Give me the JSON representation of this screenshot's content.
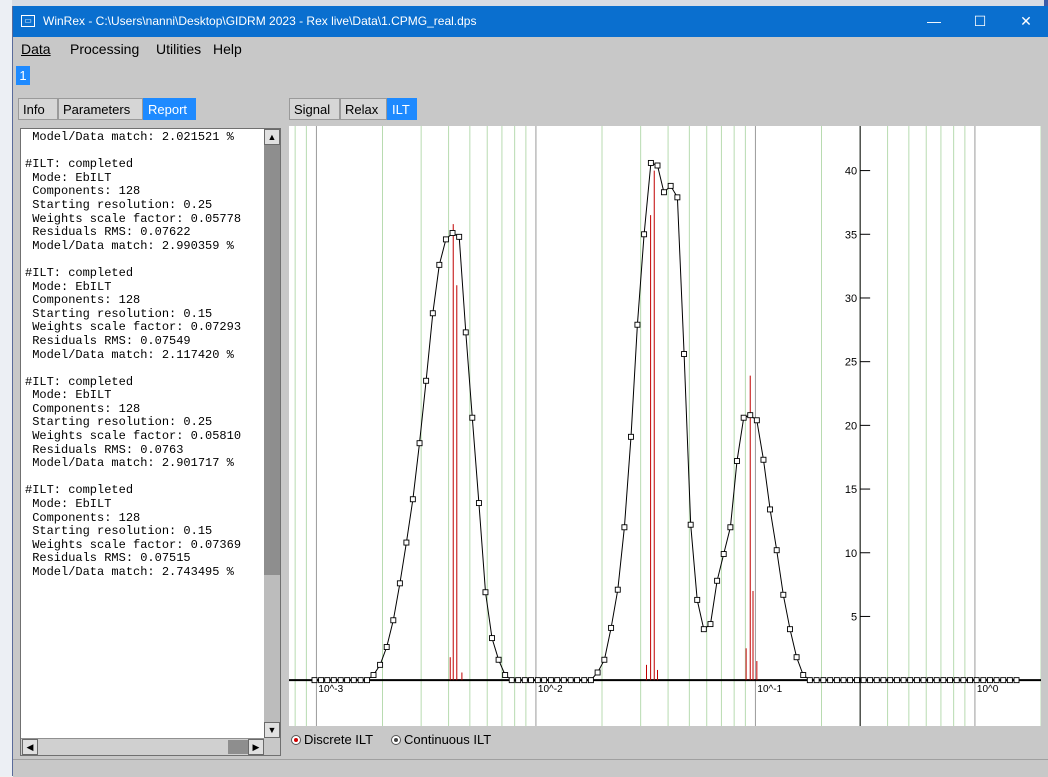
{
  "window": {
    "title": "WinRex - C:\\Users\\nanni\\Desktop\\GIDRM 2023 - Rex live\\Data\\1.CPMG_real.dps",
    "minimize": "—",
    "maximize": "☐",
    "close": "✕"
  },
  "menu": {
    "data": "Data",
    "processing": "Processing",
    "utilities": "Utilities",
    "help": "Help"
  },
  "doc_tab": "1",
  "left_tabs": {
    "info": "Info",
    "parameters": "Parameters",
    "report": "Report"
  },
  "right_tabs": {
    "signal": "Signal",
    "relax": "Relax",
    "ilt": "ILT"
  },
  "report_lines": [
    " Model/Data match: 2.021521 %",
    "",
    "#ILT: completed",
    " Mode: EbILT",
    " Components: 128",
    " Starting resolution: 0.25",
    " Weights scale factor: 0.05778",
    " Residuals RMS: 0.07622",
    " Model/Data match: 2.990359 %",
    "",
    "#ILT: completed",
    " Mode: EbILT",
    " Components: 128",
    " Starting resolution: 0.15",
    " Weights scale factor: 0.07293",
    " Residuals RMS: 0.07549",
    " Model/Data match: 2.117420 %",
    "",
    "#ILT: completed",
    " Mode: EbILT",
    " Components: 128",
    " Starting resolution: 0.25",
    " Weights scale factor: 0.05810",
    " Residuals RMS: 0.0763",
    " Model/Data match: 2.901717 %",
    "",
    "#ILT: completed",
    " Mode: EbILT",
    " Components: 128",
    " Starting resolution: 0.15",
    " Weights scale factor: 0.07369",
    " Residuals RMS: 0.07515",
    " Model/Data match: 2.743495 %"
  ],
  "radio_options": {
    "discrete": "Discrete ILT",
    "continuous": "Continuous ILT",
    "selected": "discrete"
  },
  "chart_data": {
    "type": "line",
    "x_scale": "log",
    "xlim": [
      0.00075,
      2.0
    ],
    "ylim": [
      -3.6,
      43.5
    ],
    "x_ticks": [
      {
        "value": 0.001,
        "label": "10^-3"
      },
      {
        "value": 0.01,
        "label": "10^-2"
      },
      {
        "value": 0.1,
        "label": "10^-1"
      },
      {
        "value": 1,
        "label": "10^0"
      }
    ],
    "y_ticks": [
      5,
      10,
      15,
      20,
      25,
      30,
      35,
      40
    ],
    "y_axis_at_x": 0.3,
    "grid": "minor vertical lines per decade",
    "series": [
      {
        "style": "black line with square markers",
        "color": "#000000",
        "points": [
          [
            0.00098,
            0
          ],
          [
            0.00105,
            0
          ],
          [
            0.00112,
            0
          ],
          [
            0.0012,
            0
          ],
          [
            0.00129,
            0
          ],
          [
            0.00138,
            0
          ],
          [
            0.00148,
            0
          ],
          [
            0.00159,
            0
          ],
          [
            0.0017,
            0
          ],
          [
            0.00182,
            0.4
          ],
          [
            0.00195,
            1.2
          ],
          [
            0.00209,
            2.6
          ],
          [
            0.00224,
            4.7
          ],
          [
            0.0024,
            7.6
          ],
          [
            0.00257,
            10.8
          ],
          [
            0.00275,
            14.2
          ],
          [
            0.00295,
            18.6
          ],
          [
            0.00316,
            23.5
          ],
          [
            0.00339,
            28.8
          ],
          [
            0.00363,
            32.6
          ],
          [
            0.00389,
            34.6
          ],
          [
            0.00417,
            35.1
          ],
          [
            0.00447,
            34.8
          ],
          [
            0.00479,
            27.3
          ],
          [
            0.00513,
            20.6
          ],
          [
            0.0055,
            13.9
          ],
          [
            0.00589,
            6.9
          ],
          [
            0.00631,
            3.3
          ],
          [
            0.00676,
            1.6
          ],
          [
            0.00724,
            0.4
          ],
          [
            0.00776,
            0
          ],
          [
            0.0083,
            0
          ],
          [
            0.0089,
            0
          ],
          [
            0.0095,
            0
          ],
          [
            0.0102,
            0
          ],
          [
            0.0109,
            0
          ],
          [
            0.0117,
            0
          ],
          [
            0.0125,
            0
          ],
          [
            0.0134,
            0
          ],
          [
            0.0144,
            0
          ],
          [
            0.0154,
            0
          ],
          [
            0.0166,
            0
          ],
          [
            0.0178,
            0
          ],
          [
            0.0191,
            0.6
          ],
          [
            0.0205,
            1.6
          ],
          [
            0.022,
            4.1
          ],
          [
            0.0236,
            7.1
          ],
          [
            0.0253,
            12.0
          ],
          [
            0.0271,
            19.1
          ],
          [
            0.029,
            27.9
          ],
          [
            0.0311,
            35.0
          ],
          [
            0.0334,
            40.6
          ],
          [
            0.0358,
            40.4
          ],
          [
            0.0383,
            38.3
          ],
          [
            0.0411,
            38.8
          ],
          [
            0.0441,
            37.9
          ],
          [
            0.0473,
            25.6
          ],
          [
            0.0507,
            12.2
          ],
          [
            0.0543,
            6.3
          ],
          [
            0.0582,
            4.0
          ],
          [
            0.0624,
            4.4
          ],
          [
            0.0669,
            7.8
          ],
          [
            0.0717,
            9.9
          ],
          [
            0.0769,
            12.0
          ],
          [
            0.0824,
            17.2
          ],
          [
            0.0884,
            20.6
          ],
          [
            0.0947,
            20.8
          ],
          [
            0.1015,
            20.4
          ],
          [
            0.1088,
            17.3
          ],
          [
            0.1166,
            13.4
          ],
          [
            0.125,
            10.2
          ],
          [
            0.134,
            6.7
          ],
          [
            0.1437,
            4.0
          ],
          [
            0.154,
            1.8
          ],
          [
            0.1651,
            0.4
          ],
          [
            0.177,
            0
          ],
          [
            0.19,
            0
          ],
          [
            0.204,
            0
          ],
          [
            0.219,
            0
          ],
          [
            0.235,
            0
          ],
          [
            0.252,
            0
          ],
          [
            0.27,
            0
          ],
          [
            0.29,
            0
          ],
          [
            0.311,
            0
          ],
          [
            0.333,
            0
          ],
          [
            0.357,
            0
          ],
          [
            0.383,
            0
          ],
          [
            0.411,
            0
          ],
          [
            0.441,
            0
          ],
          [
            0.473,
            0
          ],
          [
            0.507,
            0
          ],
          [
            0.544,
            0
          ],
          [
            0.583,
            0
          ],
          [
            0.625,
            0
          ],
          [
            0.67,
            0
          ],
          [
            0.718,
            0
          ],
          [
            0.77,
            0
          ],
          [
            0.826,
            0
          ],
          [
            0.886,
            0
          ],
          [
            0.95,
            0
          ],
          [
            1.018,
            0
          ],
          [
            1.092,
            0
          ],
          [
            1.171,
            0
          ],
          [
            1.255,
            0
          ],
          [
            1.346,
            0
          ],
          [
            1.443,
            0
          ],
          [
            1.547,
            0
          ]
        ]
      },
      {
        "style": "red vertical spikes (discrete ILT)",
        "color": "#c00000",
        "points": [
          [
            0.0042,
            35.8
          ],
          [
            0.00436,
            31.0
          ],
          [
            0.00407,
            1.8
          ],
          [
            0.0046,
            0.6
          ],
          [
            0.0333,
            36.5
          ],
          [
            0.0346,
            40.0
          ],
          [
            0.0319,
            1.2
          ],
          [
            0.0358,
            0.8
          ],
          [
            0.0947,
            23.9
          ],
          [
            0.0907,
            2.5
          ],
          [
            0.0975,
            7.0
          ],
          [
            0.1015,
            1.5
          ]
        ]
      }
    ]
  }
}
